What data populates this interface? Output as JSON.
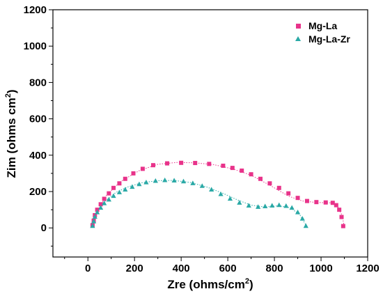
{
  "chart_data": {
    "type": "scatter",
    "xlabel_main": "Zre (ohms/cm",
    "xlabel_sup": "2",
    "xlabel_end": ")",
    "ylabel_main": "Zim (ohms cm",
    "ylabel_sup": "2",
    "ylabel_end": ")",
    "xlim": [
      -150,
      1200
    ],
    "ylim": [
      -160,
      1200
    ],
    "x_ticks": [
      0,
      200,
      400,
      600,
      800,
      1000,
      1200
    ],
    "y_ticks": [
      0,
      200,
      400,
      600,
      800,
      1000,
      1200
    ],
    "x_tick_labels": [
      "0",
      "200",
      "400",
      "600",
      "800",
      "1000",
      "1200"
    ],
    "y_tick_labels": [
      "0",
      "200",
      "400",
      "600",
      "800",
      "1000",
      "1200"
    ],
    "legend_position": "top-right",
    "series": [
      {
        "name": "Mg-La",
        "color": "#e8338a",
        "marker": "square",
        "x": [
          20,
          25,
          30,
          40,
          55,
          70,
          90,
          110,
          135,
          160,
          195,
          235,
          280,
          340,
          400,
          460,
          520,
          580,
          620,
          660,
          700,
          740,
          780,
          820,
          860,
          900,
          940,
          980,
          1020,
          1050,
          1065,
          1078,
          1088,
          1095
        ],
        "y": [
          15,
          40,
          70,
          100,
          130,
          160,
          190,
          220,
          245,
          270,
          300,
          325,
          345,
          355,
          358,
          357,
          352,
          342,
          330,
          315,
          295,
          270,
          245,
          220,
          190,
          165,
          148,
          142,
          140,
          138,
          125,
          100,
          60,
          10
        ],
        "fit_x": [
          20,
          40,
          80,
          140,
          220,
          300,
          380,
          460,
          540,
          620,
          700,
          780,
          860,
          920,
          980,
          1040,
          1070,
          1090,
          1100
        ],
        "fit_y": [
          5,
          90,
          180,
          255,
          315,
          350,
          360,
          358,
          348,
          325,
          290,
          235,
          175,
          148,
          140,
          138,
          120,
          70,
          5
        ]
      },
      {
        "name": "Mg-La-Zr",
        "color": "#2aa9a6",
        "marker": "triangle",
        "x": [
          20,
          25,
          30,
          40,
          55,
          70,
          90,
          110,
          135,
          160,
          190,
          220,
          250,
          290,
          330,
          370,
          410,
          450,
          490,
          530,
          570,
          610,
          650,
          690,
          730,
          760,
          790,
          820,
          850,
          875,
          900,
          920,
          935
        ],
        "y": [
          10,
          35,
          60,
          85,
          110,
          135,
          155,
          175,
          195,
          210,
          225,
          240,
          250,
          258,
          262,
          260,
          255,
          245,
          230,
          210,
          185,
          160,
          138,
          122,
          115,
          118,
          122,
          125,
          120,
          110,
          85,
          50,
          10
        ],
        "fit_x": [
          18,
          30,
          50,
          80,
          120,
          170,
          230,
          300,
          370,
          440,
          510,
          580,
          640,
          700,
          760,
          820,
          870,
          910,
          940
        ],
        "fit_y": [
          5,
          60,
          110,
          155,
          195,
          225,
          248,
          260,
          261,
          250,
          225,
          190,
          155,
          125,
          115,
          122,
          110,
          70,
          5
        ]
      }
    ]
  }
}
